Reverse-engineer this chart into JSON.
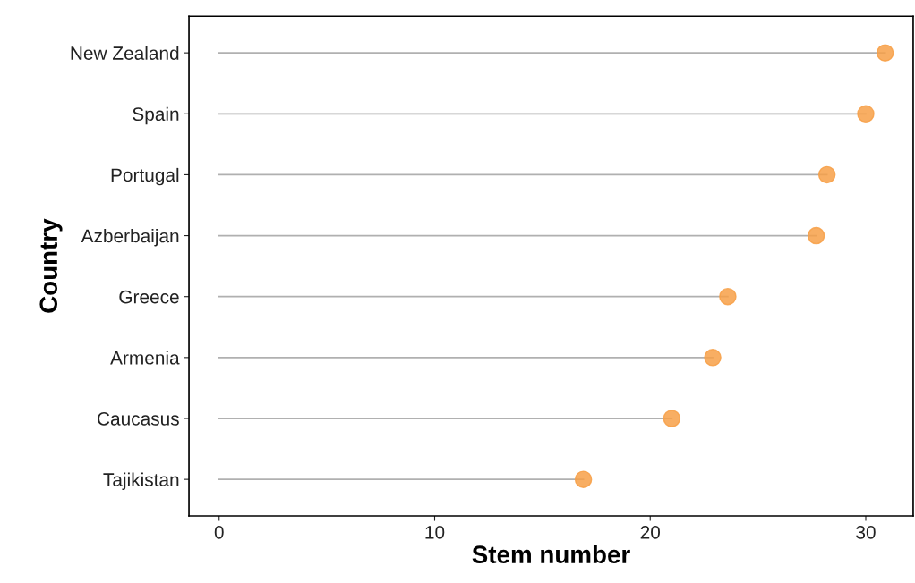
{
  "chart_data": {
    "type": "lollipop",
    "orientation": "horizontal",
    "xlabel": "Stem number",
    "ylabel": "Country",
    "categories": [
      "New Zealand",
      "Spain",
      "Portugal",
      "Azberbaijan",
      "Greece",
      "Armenia",
      "Caucasus",
      "Tajikistan"
    ],
    "series": [
      {
        "color": "#f7a048",
        "values": [
          30.9,
          30.0,
          28.2,
          27.7,
          23.6,
          22.9,
          21.0,
          16.9
        ]
      }
    ],
    "xlim": [
      -1.4,
      32.2
    ],
    "xticks": [
      0,
      10,
      20,
      30
    ],
    "grid": false,
    "legend": false,
    "marker": "circle"
  }
}
